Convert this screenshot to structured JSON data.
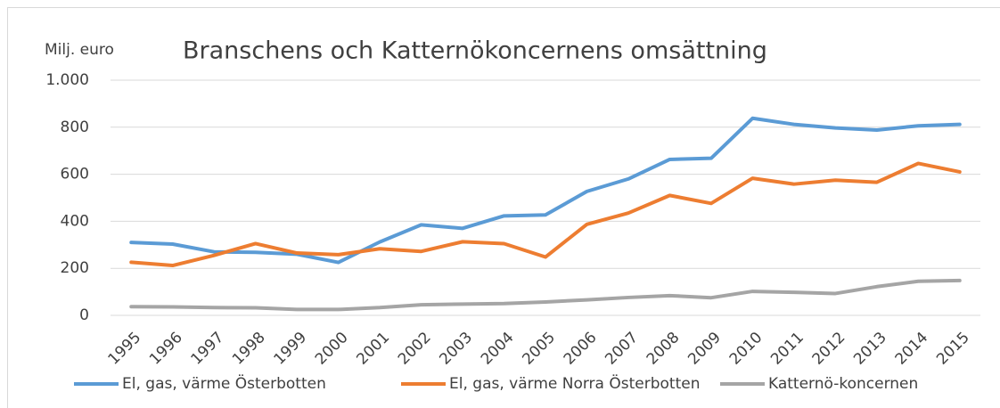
{
  "chart_data": {
    "type": "line",
    "title": "Branschens och Katternökoncernens omsättning",
    "y_label": "Milj. euro",
    "categories": [
      "1995",
      "1996",
      "1997",
      "1998",
      "1999",
      "2000",
      "2001",
      "2002",
      "2003",
      "2004",
      "2005",
      "2006",
      "2007",
      "2008",
      "2009",
      "2010",
      "2011",
      "2012",
      "2013",
      "2014",
      "2015"
    ],
    "series": [
      {
        "name": "El, gas, värme Österbotten",
        "color": "#5b9bd5",
        "values": [
          310,
          303,
          270,
          268,
          260,
          225,
          312,
          385,
          370,
          423,
          427,
          527,
          580,
          663,
          668,
          838,
          812,
          797,
          788,
          806,
          812
        ]
      },
      {
        "name": "El, gas, värme Norra Österbotten",
        "color": "#ed7d31",
        "values": [
          226,
          212,
          255,
          305,
          265,
          258,
          283,
          272,
          313,
          305,
          248,
          387,
          435,
          510,
          476,
          583,
          558,
          575,
          566,
          646,
          610
        ]
      },
      {
        "name": "Katternö-koncernen",
        "color": "#a5a5a5",
        "values": [
          37,
          36,
          33,
          32,
          25,
          25,
          33,
          45,
          48,
          50,
          57,
          66,
          76,
          84,
          75,
          102,
          98,
          93,
          122,
          145,
          148
        ]
      }
    ],
    "ylim": [
      0,
      1000
    ],
    "yticks": [
      0,
      200,
      400,
      600,
      800,
      {
        "value": 1000,
        "label": "1.000"
      }
    ],
    "grid": true,
    "legend": "bottom"
  }
}
